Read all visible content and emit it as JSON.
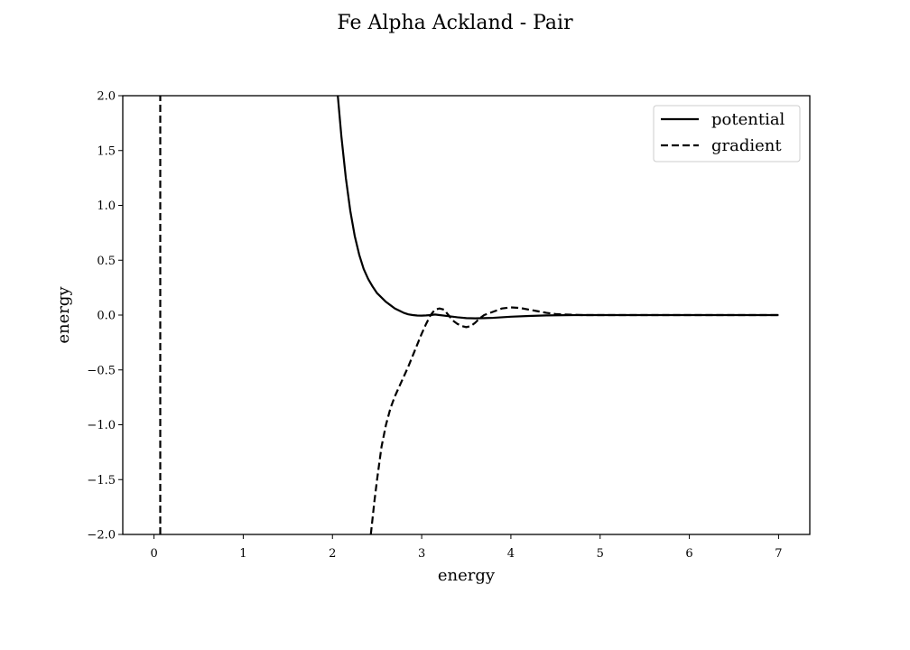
{
  "chart_data": {
    "type": "line",
    "title": "Fe Alpha Ackland - Pair",
    "xlabel": "energy",
    "ylabel": "energy",
    "xlim": [
      -0.35,
      7.35
    ],
    "ylim": [
      -2.0,
      2.0
    ],
    "x_ticks": [
      0,
      1,
      2,
      3,
      4,
      5,
      6,
      7
    ],
    "x_tick_labels": [
      "0",
      "1",
      "2",
      "3",
      "4",
      "5",
      "6",
      "7"
    ],
    "y_ticks": [
      -2.0,
      -1.5,
      -1.0,
      -0.5,
      0.0,
      0.5,
      1.0,
      1.5,
      2.0
    ],
    "y_tick_labels": [
      "−2.0",
      "−1.5",
      "−1.0",
      "−0.5",
      "0.0",
      "0.5",
      "1.0",
      "1.5",
      "2.0"
    ],
    "grid": false,
    "legend_position": "top-right",
    "series": [
      {
        "name": "potential",
        "line_style": "solid",
        "color": "#000000",
        "x": [
          1.9,
          2.06,
          2.1,
          2.15,
          2.2,
          2.25,
          2.3,
          2.35,
          2.4,
          2.45,
          2.5,
          2.55,
          2.6,
          2.65,
          2.7,
          2.75,
          2.8,
          2.85,
          2.9,
          2.95,
          3.0,
          3.05,
          3.1,
          3.15,
          3.2,
          3.3,
          3.4,
          3.5,
          3.6,
          3.7,
          3.8,
          3.9,
          4.0,
          4.2,
          4.4,
          4.6,
          4.8,
          5.0,
          5.5,
          6.0,
          6.5,
          7.0
        ],
        "y": [
          3.5,
          2.0,
          1.63,
          1.25,
          0.95,
          0.72,
          0.55,
          0.42,
          0.33,
          0.26,
          0.2,
          0.16,
          0.12,
          0.09,
          0.06,
          0.04,
          0.02,
          0.007,
          0.0,
          -0.004,
          -0.005,
          -0.003,
          0.0,
          0.005,
          0.0,
          -0.01,
          -0.02,
          -0.028,
          -0.03,
          -0.028,
          -0.025,
          -0.02,
          -0.015,
          -0.008,
          -0.003,
          -0.001,
          0.0,
          0.0,
          0.0,
          0.0,
          0.0,
          0.0
        ]
      },
      {
        "name": "gradient",
        "line_style": "dashed",
        "color": "#000000",
        "segments": [
          {
            "x": [
              0.07,
              0.07
            ],
            "y": [
              -2.0,
              2.0
            ]
          },
          {
            "x": [
              2.43,
              2.47,
              2.5,
              2.55,
              2.6,
              2.65,
              2.7,
              2.75,
              2.8,
              2.85,
              2.9,
              2.95,
              3.0,
              3.05,
              3.1,
              3.15,
              3.2,
              3.25,
              3.3,
              3.35,
              3.4,
              3.45,
              3.5,
              3.55,
              3.6,
              3.65,
              3.7,
              3.8,
              3.9,
              4.0,
              4.1,
              4.2,
              4.3,
              4.4,
              4.5,
              4.6,
              4.8,
              5.0,
              5.5,
              6.0,
              6.5,
              7.0
            ],
            "y": [
              -2.0,
              -1.7,
              -1.5,
              -1.2,
              -1.0,
              -0.85,
              -0.74,
              -0.65,
              -0.56,
              -0.47,
              -0.37,
              -0.27,
              -0.17,
              -0.08,
              0.0,
              0.05,
              0.06,
              0.05,
              0.0,
              -0.05,
              -0.08,
              -0.1,
              -0.11,
              -0.1,
              -0.07,
              -0.03,
              0.0,
              0.03,
              0.06,
              0.07,
              0.065,
              0.05,
              0.035,
              0.02,
              0.01,
              0.005,
              0.0,
              0.0,
              0.0,
              0.0,
              0.0,
              0.0
            ]
          }
        ]
      }
    ]
  }
}
